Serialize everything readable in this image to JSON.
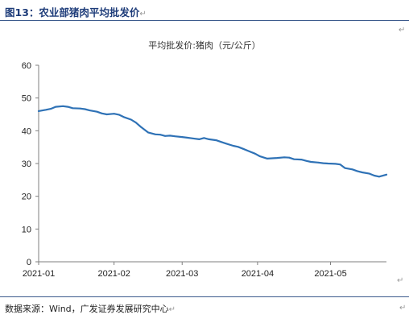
{
  "figure": {
    "title": "图13：农业部猪肉平均批发价",
    "title_mark": "↵",
    "source": "数据来源：Wind，广发证券发展研究中心",
    "source_mark": "↵",
    "side_mark": "↵",
    "right_top_mark": "↵",
    "right_bottom_mark": "↵"
  },
  "colors": {
    "line": "#2f72b6",
    "axis": "#7f7f7f",
    "rule": "#3c5a8c"
  },
  "chart_data": {
    "type": "line",
    "title": "平均批发价:猪肉（元/公斤）",
    "xlabel": "",
    "ylabel": "",
    "ylim": [
      0,
      60
    ],
    "yticks": [
      0,
      10,
      20,
      30,
      40,
      50,
      60
    ],
    "xlim": [
      "2021-01-01",
      "2021-05-24"
    ],
    "xticks": [
      "2021-01",
      "2021-02",
      "2021-03",
      "2021-04",
      "2021-05"
    ],
    "grid": false,
    "legend": "none",
    "series": [
      {
        "name": "",
        "x": [
          "2021-01-01",
          "2021-01-04",
          "2021-01-06",
          "2021-01-08",
          "2021-01-11",
          "2021-01-13",
          "2021-01-15",
          "2021-01-18",
          "2021-01-20",
          "2021-01-22",
          "2021-01-25",
          "2021-01-27",
          "2021-01-29",
          "2021-02-01",
          "2021-02-03",
          "2021-02-05",
          "2021-02-08",
          "2021-02-10",
          "2021-02-12",
          "2021-02-15",
          "2021-02-18",
          "2021-02-20",
          "2021-02-22",
          "2021-02-24",
          "2021-02-26",
          "2021-03-01",
          "2021-03-03",
          "2021-03-05",
          "2021-03-08",
          "2021-03-10",
          "2021-03-12",
          "2021-03-15",
          "2021-03-17",
          "2021-03-19",
          "2021-03-22",
          "2021-03-24",
          "2021-03-26",
          "2021-03-29",
          "2021-03-31",
          "2021-04-02",
          "2021-04-05",
          "2021-04-07",
          "2021-04-09",
          "2021-04-12",
          "2021-04-14",
          "2021-04-16",
          "2021-04-19",
          "2021-04-21",
          "2021-04-23",
          "2021-04-26",
          "2021-04-28",
          "2021-04-30",
          "2021-05-03",
          "2021-05-05",
          "2021-05-07",
          "2021-05-10",
          "2021-05-12",
          "2021-05-14",
          "2021-05-17",
          "2021-05-19",
          "2021-05-21",
          "2021-05-24"
        ],
        "values": [
          46.0,
          46.4,
          46.7,
          47.3,
          47.5,
          47.3,
          46.9,
          46.8,
          46.6,
          46.2,
          45.8,
          45.3,
          45.0,
          45.2,
          44.9,
          44.2,
          43.4,
          42.5,
          41.2,
          39.5,
          38.9,
          38.8,
          38.4,
          38.5,
          38.3,
          38.1,
          37.9,
          37.7,
          37.4,
          37.8,
          37.4,
          37.1,
          36.6,
          36.1,
          35.4,
          35.1,
          34.5,
          33.6,
          33.0,
          32.2,
          31.5,
          31.6,
          31.7,
          31.9,
          31.8,
          31.3,
          31.2,
          30.8,
          30.5,
          30.3,
          30.1,
          30.0,
          29.9,
          29.7,
          28.6,
          28.2,
          27.7,
          27.3,
          26.9,
          26.3,
          26.0,
          26.6
        ]
      }
    ]
  }
}
